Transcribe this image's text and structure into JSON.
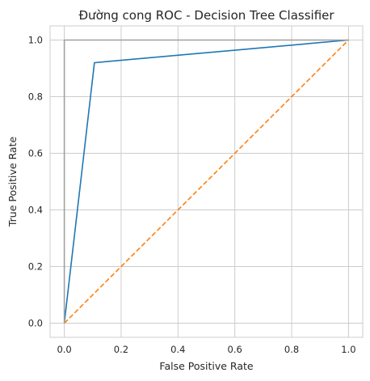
{
  "chart_data": {
    "type": "line",
    "title": "Đường cong ROC - Decision Tree Classifier",
    "xlabel": "False Positive Rate",
    "ylabel": "True Positive Rate",
    "xlim": [
      -0.05,
      1.05
    ],
    "ylim": [
      -0.05,
      1.05
    ],
    "xticks": [
      "0.0",
      "0.2",
      "0.4",
      "0.6",
      "0.8",
      "1.0"
    ],
    "yticks": [
      "0.0",
      "0.2",
      "0.4",
      "0.6",
      "0.8",
      "1.0"
    ],
    "grid": true,
    "series": [
      {
        "x": [
          0.0,
          0.106,
          1.0
        ],
        "y": [
          0.0,
          0.92,
          1.0
        ],
        "color": "#1f77b4",
        "style": "solid"
      },
      {
        "x": [
          0.0,
          1.0
        ],
        "y": [
          0.0,
          1.0
        ],
        "color": "#ff7f0e",
        "style": "dashed"
      },
      {
        "x": [
          0.0,
          0.0,
          1.0
        ],
        "y": [
          0.0,
          1.0,
          1.0
        ],
        "color": "#a0a0a0",
        "style": "solid"
      }
    ]
  }
}
